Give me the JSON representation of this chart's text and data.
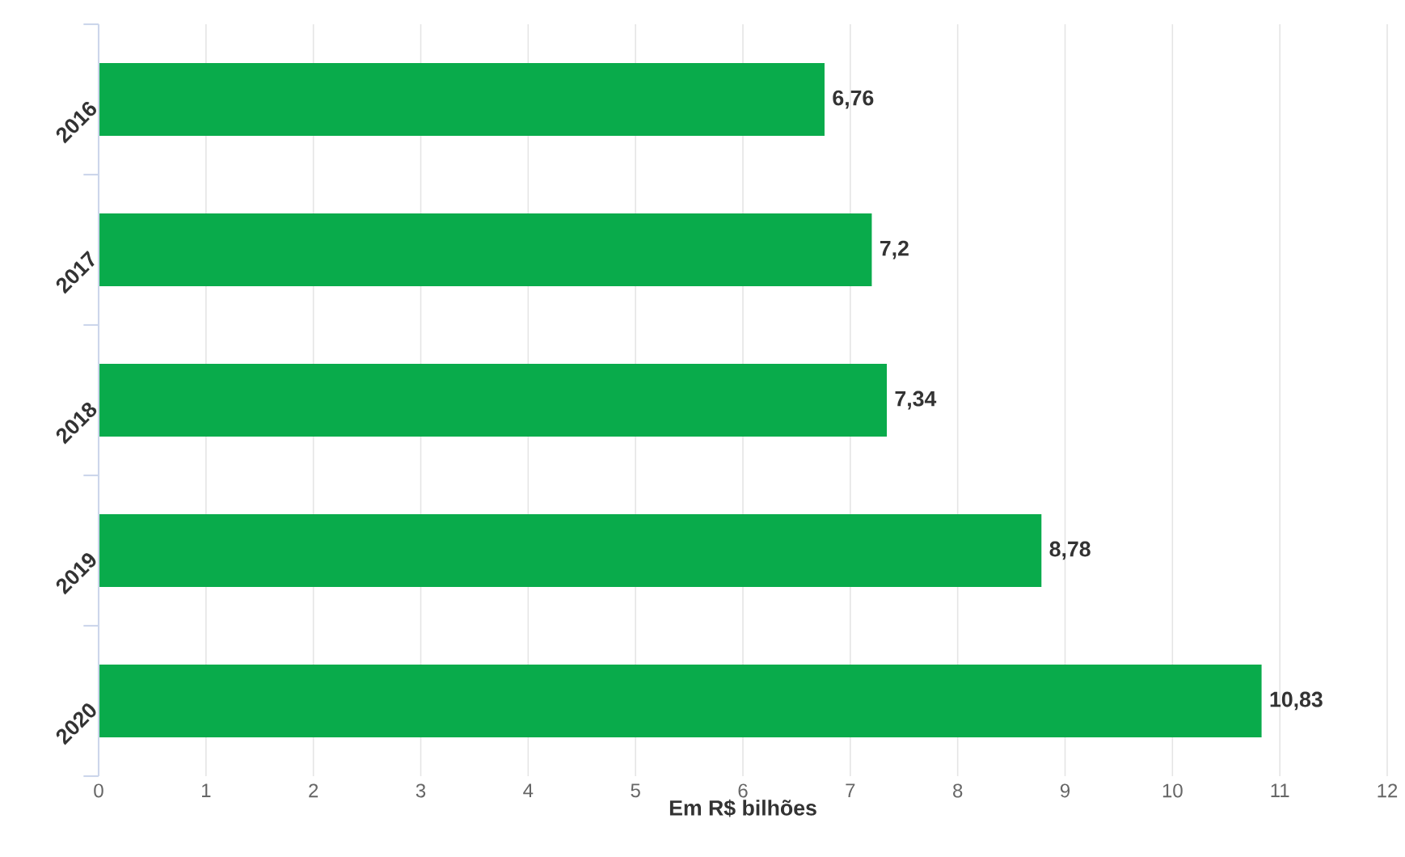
{
  "chart_data": {
    "type": "bar",
    "orientation": "horizontal",
    "xlabel": "Em R$ bilhões",
    "categories": [
      "2016",
      "2017",
      "2018",
      "2019",
      "2020"
    ],
    "values": [
      6.76,
      7.2,
      7.34,
      8.78,
      10.83
    ],
    "value_labels": [
      "6,76",
      "7,2",
      "7,34",
      "8,78",
      "10,83"
    ],
    "color": "#09ab4b",
    "xlim": [
      0,
      12
    ],
    "xticks": [
      0,
      1,
      2,
      3,
      4,
      5,
      6,
      7,
      8,
      9,
      10,
      11,
      12
    ],
    "grid": "x"
  }
}
